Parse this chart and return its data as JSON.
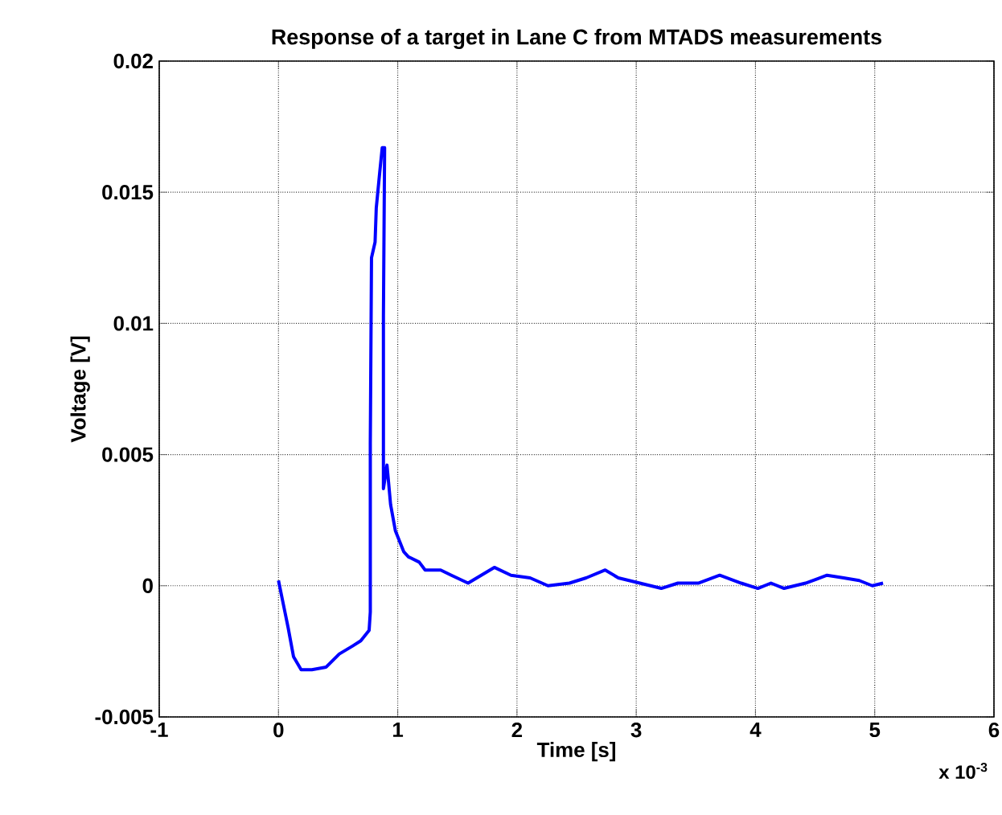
{
  "chart_data": {
    "type": "line",
    "title": "Response of a target in Lane C from MTADS measurements",
    "xlabel": "Time [s]",
    "ylabel": "Voltage [V]",
    "annotations": [
      "x 10$^{-3}$"
    ],
    "x": [
      0,
      0.036,
      0.081,
      0.126,
      0.19,
      0.28,
      0.4,
      0.51,
      0.62,
      0.69,
      0.76,
      0.77,
      0.77,
      0.78,
      0.81,
      0.82,
      0.85,
      0.87,
      0.89,
      0.88,
      0.88,
      0.91,
      0.94,
      0.98,
      1.05,
      1.09,
      1.18,
      1.23,
      1.36,
      1.45,
      1.59,
      1.7,
      1.81,
      1.95,
      2.11,
      2.26,
      2.44,
      2.58,
      2.74,
      2.85,
      3.03,
      3.21,
      3.35,
      3.52,
      3.7,
      3.88,
      4.02,
      4.13,
      4.24,
      4.42,
      4.6,
      4.74,
      4.87,
      4.98,
      5.07
    ],
    "values": [
      0.0002,
      -0.0006,
      -0.0016,
      -0.0027,
      -0.0032,
      -0.0032,
      -0.0031,
      -0.0026,
      -0.0023,
      -0.0021,
      -0.0017,
      -0.001,
      0.0054,
      0.0125,
      0.0131,
      0.0144,
      0.0158,
      0.0167,
      0.0167,
      0.0103,
      0.0037,
      0.0046,
      0.0031,
      0.0021,
      0.0013,
      0.0011,
      0.0009,
      0.0006,
      0.0006,
      0.0004,
      0.0001,
      0.0004,
      0.0007,
      0.0004,
      0.0003,
      0.0,
      0.0001,
      0.0003,
      0.0006,
      0.0003,
      0.0001,
      -0.0001,
      0.0001,
      0.0001,
      0.0004,
      0.0001,
      -0.0001,
      0.0001,
      -0.0001,
      0.0001,
      0.0004,
      0.0003,
      0.0002,
      0.0,
      0.0001
    ],
    "color": "#0000ff",
    "xlim": [
      -1,
      6
    ],
    "ylim": [
      -0.005,
      0.02
    ],
    "xticks": [
      -1,
      0,
      1,
      2,
      3,
      4,
      5,
      6
    ],
    "yticks": [
      -0.005,
      0,
      0.005,
      0.01,
      0.015,
      0.02
    ],
    "grid": true,
    "line_style": "solid"
  }
}
